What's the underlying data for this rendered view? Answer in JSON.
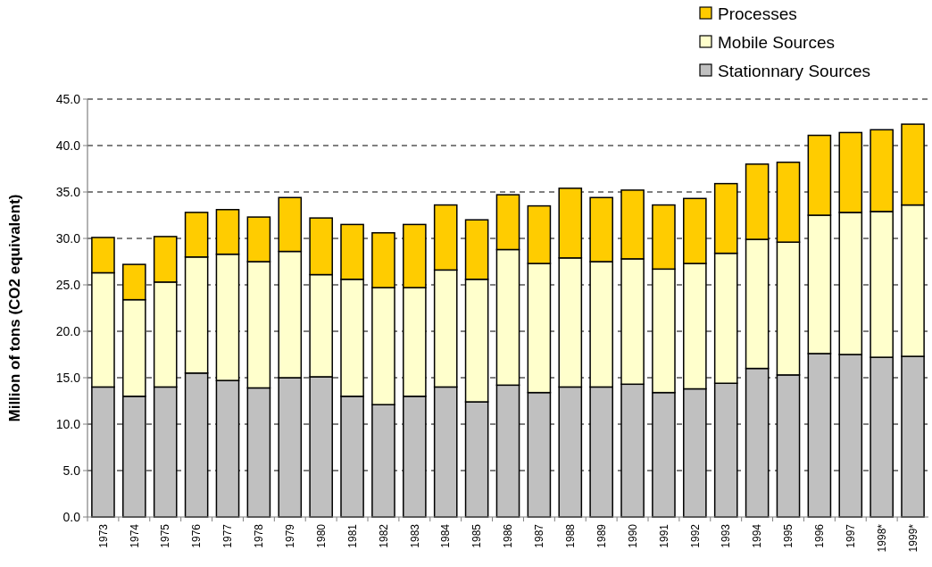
{
  "chart_data": {
    "type": "bar",
    "stacked": true,
    "ylabel": "Million of tons (CO2 equivalent)",
    "categories": [
      "1973",
      "1974",
      "1975",
      "1976",
      "1977",
      "1978",
      "1979",
      "1980",
      "1981",
      "1982",
      "1983",
      "1984",
      "1985",
      "1986",
      "1987",
      "1988",
      "1989",
      "1990",
      "1991",
      "1992",
      "1993",
      "1994",
      "1995",
      "1996",
      "1997",
      "1998*",
      "1999*"
    ],
    "series": [
      {
        "name": "Stationnary Sources",
        "color": "#c0c0c0",
        "values": [
          14.0,
          13.0,
          14.0,
          15.5,
          14.7,
          13.9,
          15.0,
          15.1,
          13.0,
          12.1,
          13.0,
          14.0,
          12.4,
          14.2,
          13.4,
          14.0,
          14.0,
          14.3,
          13.4,
          13.8,
          14.4,
          16.0,
          15.3,
          17.6,
          17.5,
          17.2,
          17.3
        ]
      },
      {
        "name": "Mobile Sources",
        "color": "#ffffcc",
        "values": [
          12.3,
          10.4,
          11.3,
          12.5,
          13.6,
          13.6,
          13.6,
          11.0,
          12.6,
          12.6,
          11.7,
          12.6,
          13.2,
          14.6,
          13.9,
          13.9,
          13.5,
          13.5,
          13.3,
          13.5,
          14.0,
          13.9,
          14.3,
          14.9,
          15.3,
          15.7,
          16.3
        ]
      },
      {
        "name": "Processes",
        "color": "#ffcc00",
        "values": [
          3.8,
          3.8,
          4.9,
          4.8,
          4.8,
          4.8,
          5.8,
          6.1,
          5.9,
          5.9,
          6.8,
          7.0,
          6.4,
          5.9,
          6.2,
          7.5,
          6.9,
          7.4,
          6.9,
          7.0,
          7.5,
          8.1,
          8.6,
          8.6,
          8.6,
          8.8,
          8.7
        ]
      }
    ],
    "ylim": [
      0,
      45
    ],
    "yticks": [
      {
        "value": 0,
        "label": "0.0"
      },
      {
        "value": 5,
        "label": "5.0"
      },
      {
        "value": 10,
        "label": "10.0"
      },
      {
        "value": 15,
        "label": "15.0"
      },
      {
        "value": 20,
        "label": "20.0"
      },
      {
        "value": 25,
        "label": "25.0"
      },
      {
        "value": 30,
        "label": "30.0"
      },
      {
        "value": 35,
        "label": "35.0"
      },
      {
        "value": 40,
        "label": "40.0"
      },
      {
        "value": 45,
        "label": "45.0"
      }
    ],
    "grid": "y",
    "legend": "top right"
  }
}
